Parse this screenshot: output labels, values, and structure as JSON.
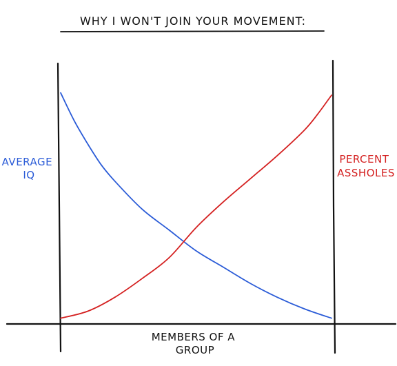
{
  "chart_data": {
    "type": "line",
    "title": "WHY I WON'T JOIN YOUR MOVEMENT:",
    "xlabel": [
      "MEMBERS OF A",
      "GROUP"
    ],
    "ylabel_left": [
      "AVERAGE",
      "IQ"
    ],
    "ylabel_right": [
      "PERCENT",
      "ASSHOLES"
    ],
    "x_ticks": false,
    "y_ticks": false,
    "grid": false,
    "xlim": [
      0,
      1
    ],
    "ylim": [
      0,
      1
    ],
    "series": [
      {
        "name": "AVERAGE IQ",
        "axis": "left",
        "color": "#2a5bd7",
        "x": [
          0.0,
          0.05,
          0.1,
          0.15,
          0.2,
          0.3,
          0.4,
          0.5,
          0.6,
          0.7,
          0.8,
          0.9,
          1.0
        ],
        "y": [
          0.98,
          0.86,
          0.76,
          0.67,
          0.6,
          0.48,
          0.39,
          0.3,
          0.23,
          0.16,
          0.1,
          0.05,
          0.01
        ]
      },
      {
        "name": "PERCENT ASSHOLES",
        "axis": "right",
        "color": "#d42020",
        "x": [
          0.0,
          0.1,
          0.2,
          0.3,
          0.4,
          0.5,
          0.6,
          0.7,
          0.8,
          0.9,
          0.95,
          1.0
        ],
        "y": [
          0.01,
          0.04,
          0.1,
          0.18,
          0.27,
          0.4,
          0.51,
          0.61,
          0.71,
          0.82,
          0.89,
          0.97
        ]
      }
    ]
  }
}
